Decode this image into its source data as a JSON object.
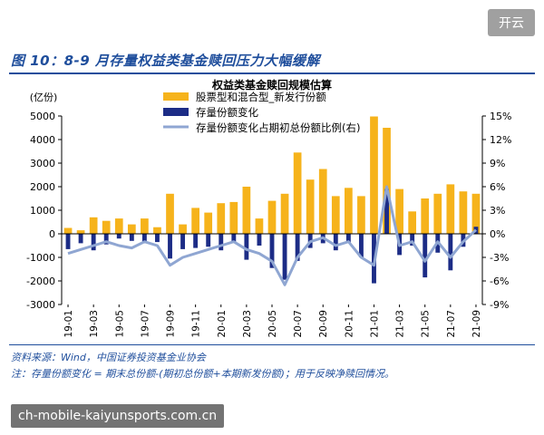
{
  "figure_title": "图 10：8-9 月存量权益类基金赎回压力大幅缓解",
  "source_note": "资料来源：Wind，中国证券投资基金业协会",
  "formula_note": "注：存量份额变化 = 期末总份额-(期初总份额+本期新发份额)；用于反映净赎回情况。",
  "overlay_button": "开云",
  "watermark_text": "ch-mobile-kaiyunsports.com.cn",
  "colors": {
    "bar_new": "#f6b31b",
    "bar_change": "#1c2c86",
    "line": "#8fa6d2",
    "text_blue": "#1f4e9c"
  },
  "chart_data": {
    "type": "bar",
    "title": "权益类基金赎回规模估算",
    "ylabel": "(亿份)",
    "ylim": [
      -3000,
      5000
    ],
    "y_ticks": [
      "5000",
      "4000",
      "3000",
      "2000",
      "1000",
      "0",
      "-1000",
      "-2000",
      "-3000"
    ],
    "y2lim": [
      -9,
      15
    ],
    "y2_ticks": [
      "15%",
      "12%",
      "9%",
      "6%",
      "3%",
      "0%",
      "-3%",
      "-6%",
      "-9%"
    ],
    "x_tick_labels": [
      "19-01",
      "19-03",
      "19-05",
      "19-07",
      "19-09",
      "19-11",
      "20-01",
      "20-03",
      "20-05",
      "20-07",
      "20-09",
      "20-11",
      "21-01",
      "21-03",
      "21-05",
      "21-07",
      "21-09"
    ],
    "categories": [
      "19-01",
      "19-02",
      "19-03",
      "19-04",
      "19-05",
      "19-06",
      "19-07",
      "19-08",
      "19-09",
      "19-10",
      "19-11",
      "19-12",
      "20-01",
      "20-02",
      "20-03",
      "20-04",
      "20-05",
      "20-06",
      "20-07",
      "20-08",
      "20-09",
      "20-10",
      "20-11",
      "20-12",
      "21-01",
      "21-02",
      "21-03",
      "21-04",
      "21-05",
      "21-06",
      "21-07",
      "21-08",
      "21-09"
    ],
    "series": [
      {
        "name": "股票型和混合型_新发行份额",
        "axis": "left",
        "values": [
          250,
          150,
          700,
          550,
          650,
          400,
          650,
          280,
          1700,
          400,
          1100,
          900,
          1300,
          1350,
          2000,
          650,
          1400,
          1700,
          3450,
          2300,
          2750,
          1600,
          1950,
          1600,
          4980,
          4500,
          1900,
          950,
          1500,
          1700,
          2100,
          1800,
          1700
        ]
      },
      {
        "name": "存量份额变化",
        "axis": "left",
        "values": [
          -650,
          -400,
          -700,
          -450,
          -200,
          -300,
          -400,
          -350,
          -1050,
          -650,
          -600,
          -550,
          -700,
          -350,
          -1100,
          -500,
          -1450,
          -1950,
          -1150,
          -600,
          -400,
          -700,
          -400,
          -1000,
          -2100,
          1900,
          -900,
          -500,
          -1850,
          -800,
          -1550,
          -550,
          300
        ]
      },
      {
        "name": "存量份额变化占期初总份额比例(右)",
        "axis": "right",
        "values": [
          -2.5,
          -2.0,
          -1.5,
          -1.0,
          -1.5,
          -1.8,
          -1.0,
          -1.5,
          -4.0,
          -3.0,
          -2.5,
          -2.0,
          -1.5,
          -1.0,
          -2.0,
          -2.5,
          -3.5,
          -6.5,
          -3.0,
          -1.0,
          -0.5,
          -1.5,
          -1.0,
          -3.0,
          -4.0,
          6.0,
          -1.5,
          -1.0,
          -3.5,
          -1.0,
          -3.0,
          -1.0,
          0.5
        ]
      }
    ],
    "legend_position": "top-center",
    "grid": false
  }
}
